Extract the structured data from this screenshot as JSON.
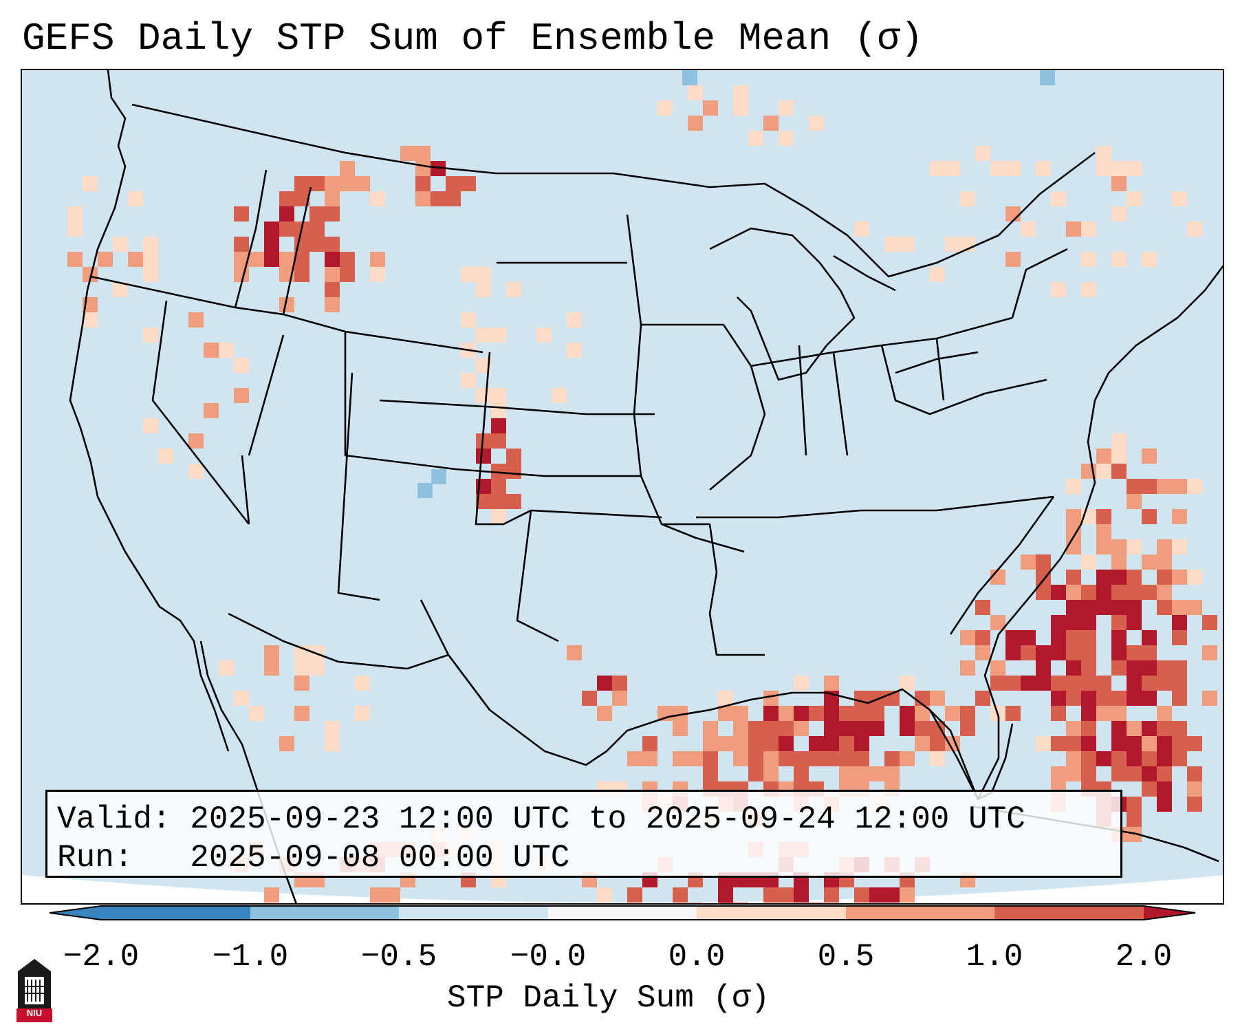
{
  "title": "GEFS Daily STP Sum of Ensemble Mean (σ)",
  "info": {
    "valid_line": "Valid: 2025-09-23 12:00 UTC to 2025-09-24 12:00 UTC",
    "run_line": "Run:   2025-09-08 00:00 UTC"
  },
  "colorbar": {
    "label": "STP Daily Sum (σ)",
    "ticks": [
      "−2.0",
      "−1.0",
      "−0.5",
      "−0.0",
      "0.0",
      "0.5",
      "1.0",
      "2.0"
    ],
    "colors": [
      "#3a84c0",
      "#8fc2de",
      "#d1e5f0",
      "#f7f7f7",
      "#fddbc7",
      "#f09d7e",
      "#d65f4d",
      "#b2182b"
    ]
  },
  "map": {
    "background_color": "#d1e5f0",
    "region": "Contiguous United States, Gulf of Mexico, northern Mexico, southern Canada"
  },
  "logo": {
    "text": "NIU"
  },
  "chart_data": {
    "type": "heatmap",
    "title": "GEFS Daily STP Sum of Ensemble Mean (σ)",
    "colorbar_label": "STP Daily Sum (σ)",
    "levels": [
      -2.0,
      -1.0,
      -0.5,
      -0.0,
      0.0,
      0.5,
      1.0,
      2.0
    ],
    "extend": "both",
    "notable_regions": [
      {
        "name": "Southeast US / western Atlantic",
        "value_range": [
          0.5,
          2.0
        ]
      },
      {
        "name": "Gulf of Mexico",
        "value_range": [
          0.5,
          2.0
        ]
      },
      {
        "name": "Idaho / western Montana",
        "value_range": [
          0.5,
          2.0
        ]
      },
      {
        "name": "Colorado Front Range",
        "value_range": [
          0.5,
          2.0
        ]
      },
      {
        "name": "Central Texas",
        "value_range": [
          1.0,
          2.0
        ]
      }
    ]
  }
}
